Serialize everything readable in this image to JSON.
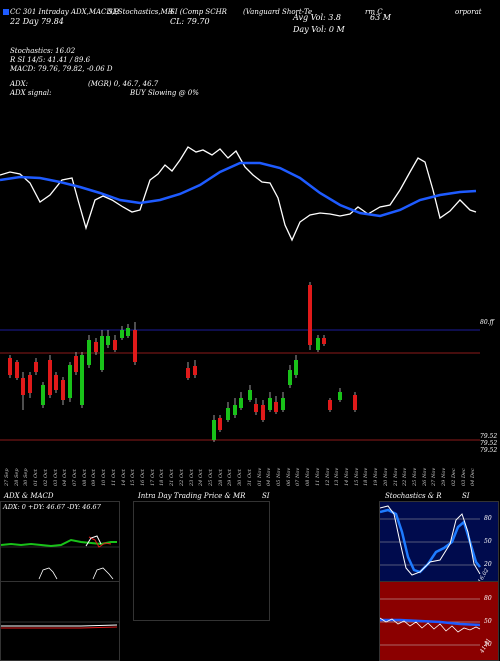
{
  "header": {
    "line1_left": "CC 301 Intraday ADX,MACD,B",
    "line1_mid": "SI,Stochastics,MR",
    "line1_mid2": "SI (Comp SCHR",
    "line1_right": "(Vanguard Short-Te",
    "line1_right2": "rm C",
    "line1_far": "orporat",
    "line2_left": "22  Day    79.84",
    "line2_mid": "CL: 79.70",
    "avg_vol": "Avg Vol: 3.8",
    "avg_vol2": "63 M",
    "day_vol": "Day Vol: 0   M",
    "stoch": "Stochastics: 16.02",
    "stoch_r": "R        SI 14/5: 41.41 / 89.6",
    "macd": "MACD: 79.76,  79.82, -0.06  D",
    "adx": "ADX:",
    "adx_mgr": "(MGR) 0,  46.7,  46.7",
    "adx_signal": "ADX  signal:",
    "buy_slowing": "BUY Slowing @ 0%"
  },
  "price_labels": {
    "p1": "80.ff",
    "p2": "79.52",
    "p3": "79.52",
    "p4": "79.52"
  },
  "dates": [
    "27 Sep",
    "28 Sep",
    "30 Sep",
    "01 Oct",
    "02 Oct",
    "03 Oct",
    "04 Oct",
    "07 Oct",
    "08 Oct",
    "09 Oct",
    "10 Oct",
    "11 Oct",
    "14 Oct",
    "15 Oct",
    "16 Oct",
    "17 Oct",
    "18 Oct",
    "21 Oct",
    "22 Oct",
    "23 Oct",
    "24 Oct",
    "25 Oct",
    "28 Oct",
    "29 Oct",
    "30 Oct",
    "31 Oct",
    "01 Nov",
    "04 Nov",
    "05 Nov",
    "06 Nov",
    "07 Nov",
    "08 Nov",
    "11 Nov",
    "12 Nov",
    "13 Nov",
    "14 Nov",
    "15 Nov",
    "18 Nov",
    "19 Nov",
    "20 Nov",
    "21 Nov",
    "22 Nov",
    "25 Nov",
    "26 Nov",
    "27 Nov",
    "29 Nov",
    "02 Dec",
    "03 Dec",
    "04 Dec"
  ],
  "panels": {
    "adx_title": "ADX  & MACD",
    "adx_values": "ADX: 0   +DY: 46.67  -DY: 46.67",
    "mid_title": "Intra  Day Trading Price  & MR",
    "mid_title2": "SI",
    "stoch_title": "Stochastics & R",
    "stoch_title2": "SI",
    "stoch_levels": [
      "80",
      "50",
      "20"
    ],
    "stoch_last": "16.02",
    "rsi_levels": [
      "80",
      "50",
      "20"
    ],
    "rsi_last": "41.41"
  },
  "colors": {
    "up": "#19c219",
    "down": "#e01a1a",
    "ma": "#1e5bff",
    "line": "#ffffff",
    "grid": "#8b1a1a"
  }
}
